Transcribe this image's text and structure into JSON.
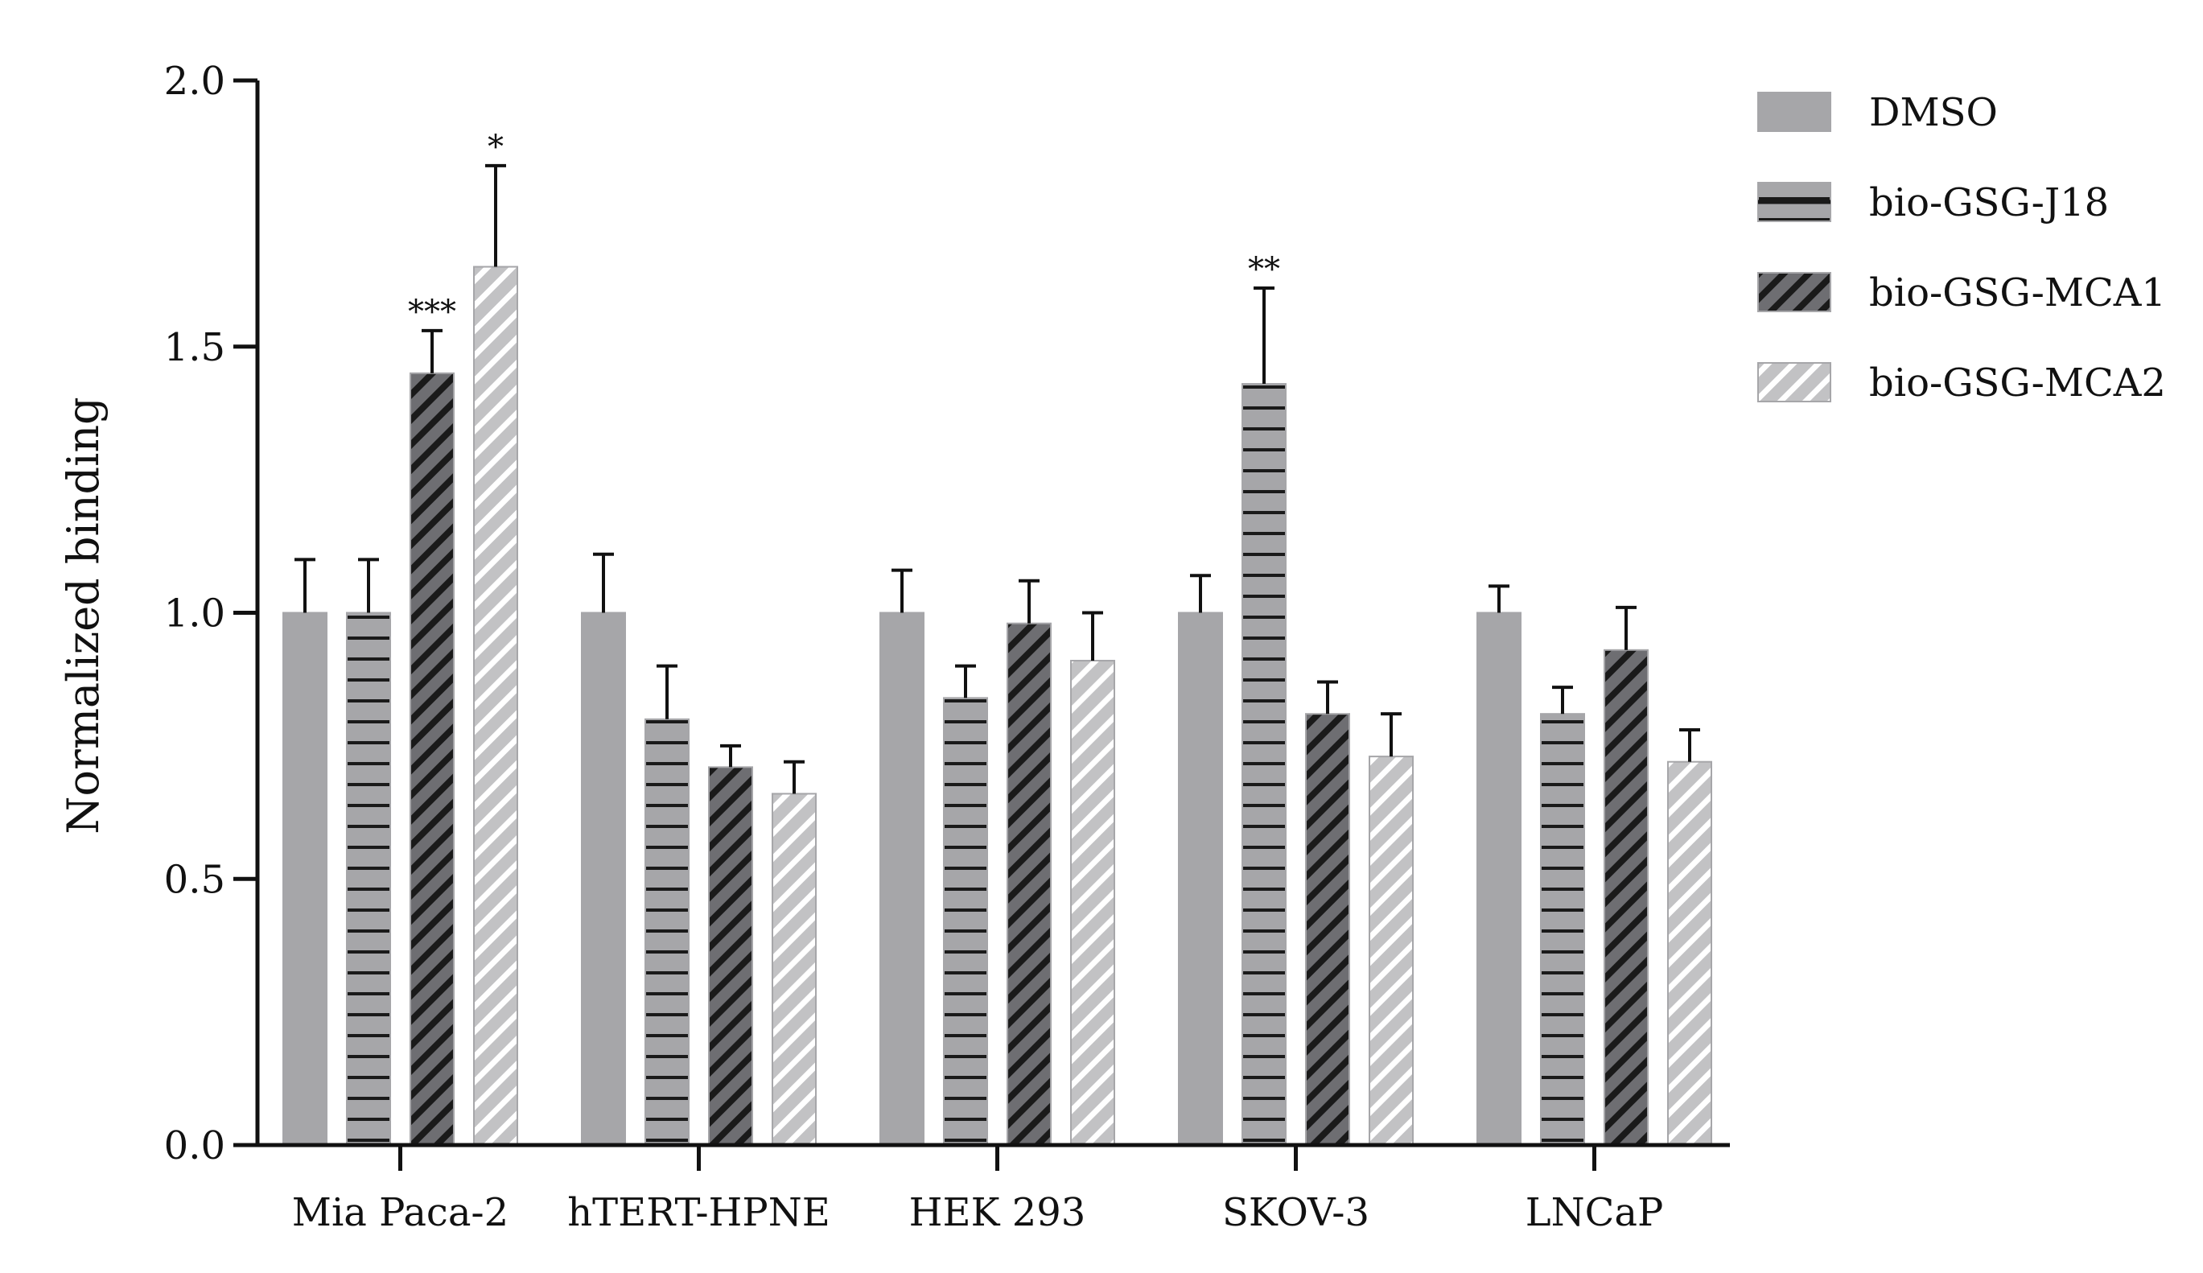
{
  "colors": {
    "bar_fill": "#a6a6a9",
    "bar_stroke": "#a6a6a9",
    "hatch_dark": "#1a1a1a",
    "axis": "#111111",
    "text": "#111111",
    "mca1_fill": "#6e6e72",
    "mca2_fill": "#c2c2c4",
    "mca2_line": "#ffffff"
  },
  "chart_data": {
    "type": "bar",
    "title": "",
    "xlabel": "",
    "ylabel": "Normalized binding",
    "ylim": [
      0,
      2.0
    ],
    "yticks": [
      0.0,
      0.5,
      1.0,
      1.5,
      2.0
    ],
    "ytick_labels": [
      "0.0",
      "0.5",
      "1.0",
      "1.5",
      "2.0"
    ],
    "grid": false,
    "legend_position": "top-right",
    "categories": [
      "Mia Paca-2",
      "hTERT-HPNE",
      "HEK 293",
      "SKOV-3",
      "LNCaP"
    ],
    "series": [
      {
        "name": "DMSO",
        "pattern": "solid",
        "values": [
          1.0,
          1.0,
          1.0,
          1.0,
          1.0
        ],
        "errors": [
          0.1,
          0.11,
          0.08,
          0.07,
          0.05
        ],
        "annotations": [
          "",
          "",
          "",
          "",
          ""
        ]
      },
      {
        "name": "bio-GSG-J18",
        "pattern": "horizontal",
        "values": [
          1.0,
          0.8,
          0.84,
          1.43,
          0.81
        ],
        "errors": [
          0.1,
          0.1,
          0.06,
          0.18,
          0.05
        ],
        "annotations": [
          "",
          "",
          "",
          "**",
          ""
        ]
      },
      {
        "name": "bio-GSG-MCA1",
        "pattern": "diagonal-dark",
        "values": [
          1.45,
          0.71,
          0.98,
          0.81,
          0.93
        ],
        "errors": [
          0.08,
          0.04,
          0.08,
          0.06,
          0.08
        ],
        "annotations": [
          "***",
          "",
          "",
          "",
          ""
        ]
      },
      {
        "name": "bio-GSG-MCA2",
        "pattern": "diagonal-light",
        "values": [
          1.65,
          0.66,
          0.91,
          0.73,
          0.72
        ],
        "errors": [
          0.19,
          0.06,
          0.09,
          0.08,
          0.06
        ],
        "annotations": [
          "*",
          "",
          "",
          "",
          ""
        ]
      }
    ]
  }
}
